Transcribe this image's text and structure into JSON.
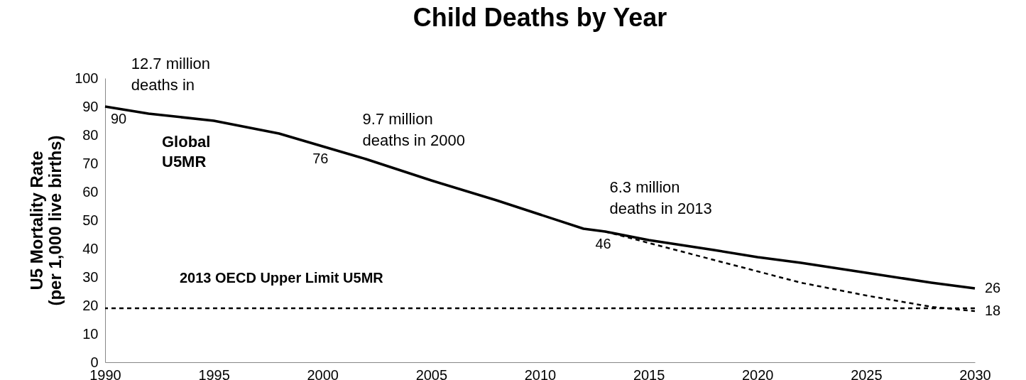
{
  "chart_data": {
    "type": "line",
    "title": "Child Deaths by Year",
    "ylabel": "U5 Mortality Rate\n(per 1,000 live births)",
    "xlim": [
      1990,
      2030
    ],
    "xticks": [
      1990,
      1995,
      2000,
      2005,
      2010,
      2015,
      2020,
      2025,
      2030
    ],
    "ylim": [
      0,
      100
    ],
    "yticks": [
      0,
      10,
      20,
      30,
      40,
      50,
      60,
      70,
      80,
      90,
      100
    ],
    "grid": false,
    "marker": "none",
    "series": [
      {
        "name": "Global U5MR",
        "color": "#000000",
        "line_style": "solid",
        "x": [
          1990,
          1992,
          1995,
          1998,
          2000,
          2002,
          2005,
          2008,
          2010,
          2012,
          2013,
          2015,
          2018,
          2020,
          2022,
          2025,
          2028,
          2030
        ],
        "values": [
          90,
          87.5,
          85,
          80.5,
          76,
          71.5,
          64,
          57,
          52,
          47,
          46,
          43,
          39.5,
          37,
          35,
          31.5,
          28,
          26
        ],
        "value_labels": [
          "90",
          null,
          null,
          null,
          "76",
          null,
          null,
          null,
          null,
          null,
          "46",
          null,
          null,
          null,
          null,
          null,
          null,
          "26"
        ]
      },
      {
        "color": "#000000",
        "line_style": "dashed",
        "x": [
          2013,
          2015,
          2018,
          2020,
          2022,
          2025,
          2028,
          2030
        ],
        "values": [
          46,
          42,
          36,
          32,
          28,
          23.5,
          19.5,
          18
        ],
        "value_labels": [
          null,
          null,
          null,
          null,
          null,
          null,
          null,
          "18"
        ]
      }
    ],
    "ref_lines": [
      {
        "axis": "y",
        "value": 19,
        "label": "2013 OECD Upper Limit U5MR",
        "color": "#000000",
        "line_style": "dashed"
      }
    ],
    "annotations": [
      "12.7 million\ndeaths in",
      "9.7 million\ndeaths in 2000",
      "6.3 million\ndeaths in 2013"
    ]
  }
}
